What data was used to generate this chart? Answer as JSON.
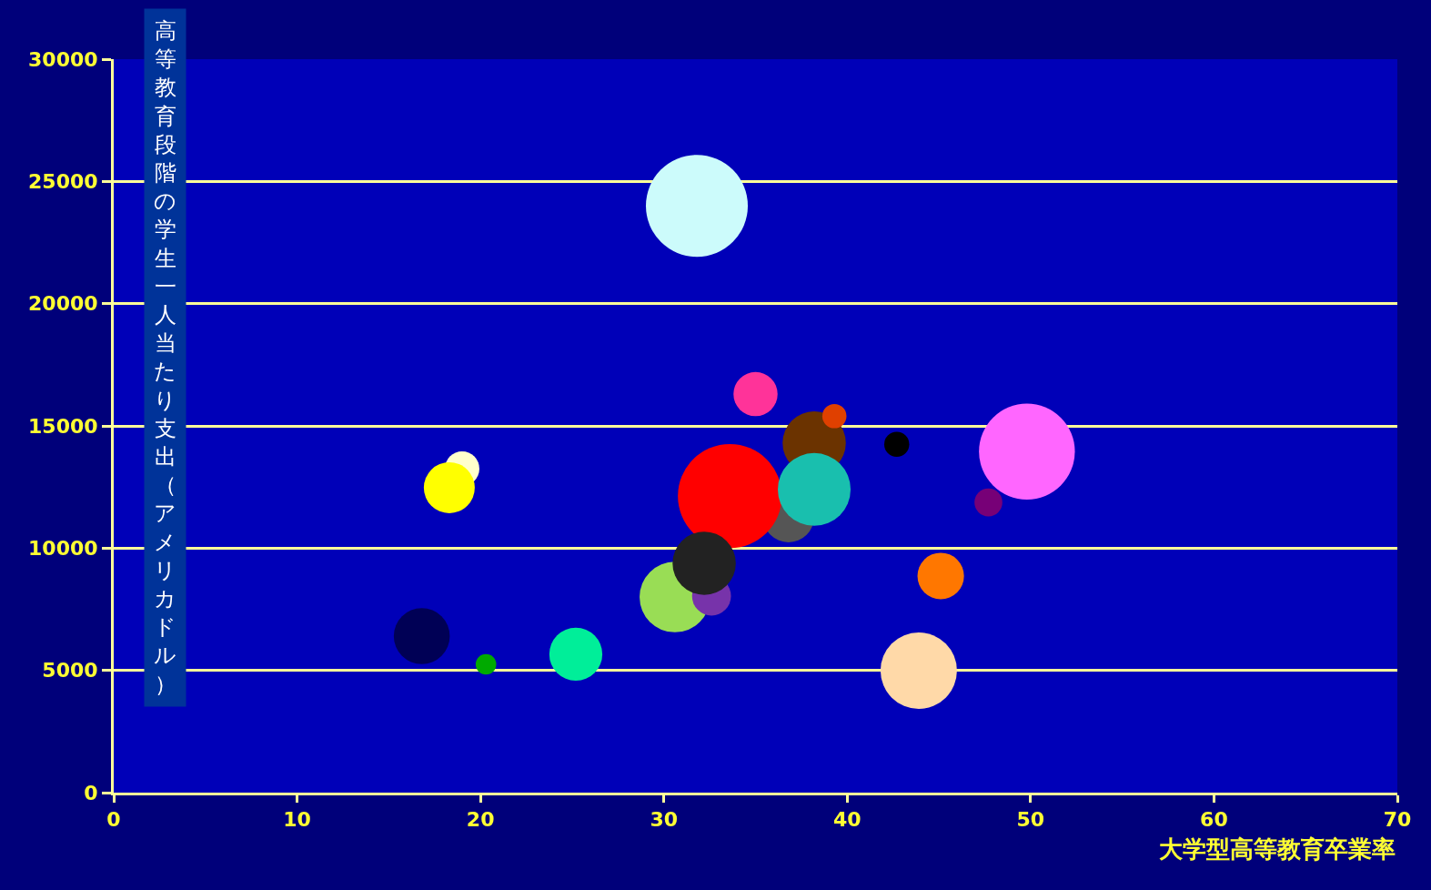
{
  "chart_data": {
    "type": "bubble",
    "xlabel": "大学型高等教育卒業率",
    "ylabel": "高等教育段階の学生一人当たり支出（アメリカドル）",
    "x": [
      31.8,
      35.0,
      38.2,
      39.3,
      42.7,
      49.8,
      19.0,
      18.3,
      36.8,
      33.6,
      38.2,
      47.7,
      30.6,
      32.6,
      32.2,
      45.1,
      16.8,
      20.3,
      25.2,
      43.9
    ],
    "values": [
      24000,
      16300,
      14300,
      15400,
      14250,
      13950,
      13250,
      12470,
      11280,
      12130,
      12400,
      11870,
      8000,
      8040,
      9380,
      8860,
      6400,
      5250,
      5660,
      4990
    ],
    "sizes": [
      0.96,
      0.18,
      0.37,
      0.054,
      0.058,
      0.85,
      0.11,
      0.24,
      0.24,
      1,
      0.49,
      0.072,
      0.46,
      0.14,
      0.37,
      0.2,
      0.29,
      0.039,
      0.26,
      0.54
    ],
    "colors": [
      "#ccfbfb",
      "#ff3399",
      "#6b3300",
      "#e04000",
      "#000000",
      "#ff66ff",
      "#ffffcc",
      "#ffff00",
      "#555555",
      "#ff0000",
      "#19bfae",
      "#770077",
      "#99dd55",
      "#7733aa",
      "#222222",
      "#ff7700",
      "#000055",
      "#00aa00",
      "#00ee99",
      "#ffd9a8"
    ],
    "xlim": [
      0,
      70
    ],
    "ylim": [
      0,
      30000
    ],
    "xticks": [
      0,
      10,
      20,
      30,
      40,
      50,
      60,
      70
    ],
    "yticks": [
      0,
      5000,
      10000,
      15000,
      20000,
      25000,
      30000
    ],
    "grid": "y"
  }
}
